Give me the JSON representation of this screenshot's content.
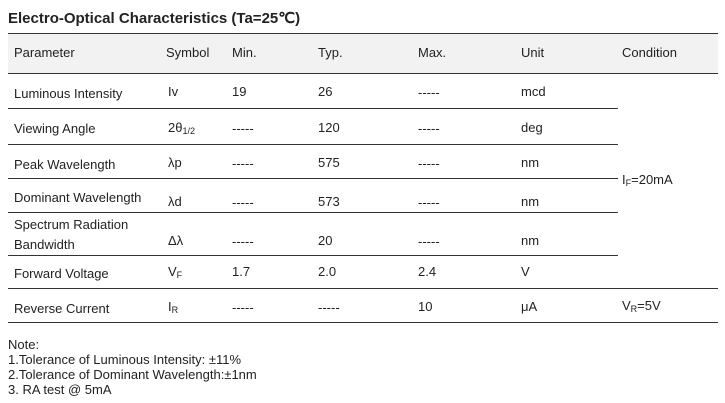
{
  "title": "Electro-Optical Characteristics (Ta=25℃)",
  "table": {
    "headers": [
      "Parameter",
      "Symbol",
      "Min.",
      "Typ.",
      "Max.",
      "Unit",
      "Condition"
    ],
    "rows": [
      {
        "parameter": "Luminous Intensity",
        "symbol": {
          "main": "Iv"
        },
        "min": "19",
        "typ": "26",
        "max": "-----",
        "unit": "mcd"
      },
      {
        "parameter": "Viewing Angle",
        "symbol": {
          "main": "2θ",
          "sub": "1/2"
        },
        "min": "-----",
        "typ": "120",
        "max": "-----",
        "unit": "deg"
      },
      {
        "parameter": "Peak Wavelength",
        "symbol": {
          "main": "λp"
        },
        "min": "-----",
        "typ": "575",
        "max": "-----",
        "unit": "nm"
      },
      {
        "parameter": "Dominant Wavelength",
        "symbol": {
          "main": "λd"
        },
        "min": "-----",
        "typ": "573",
        "max": "-----",
        "unit": "nm"
      },
      {
        "parameter": "Spectrum Radiation Bandwidth",
        "symbol": {
          "main": "Δλ"
        },
        "min": "-----",
        "typ": "20",
        "max": "-----",
        "unit": "nm"
      },
      {
        "parameter": "Forward Voltage",
        "symbol": {
          "main": "V",
          "sub": "F"
        },
        "min": "1.7",
        "typ": "2.0",
        "max": "2.4",
        "unit": "V"
      },
      {
        "parameter": "Reverse Current",
        "symbol": {
          "main": "I",
          "sub": "R"
        },
        "min": "-----",
        "typ": "-----",
        "max": "10",
        "unit": "μA"
      }
    ],
    "conditions": [
      {
        "main": "I",
        "sub": "F",
        "rest": "=20mA"
      },
      {
        "main": "V",
        "sub": "R",
        "rest": "=5V"
      }
    ]
  },
  "notes": {
    "heading": "Note:",
    "items": [
      "1.Tolerance of Luminous Intensity: ±11%",
      "2.Tolerance of Dominant Wavelength:±1nm",
      "3. RA test @ 5mA"
    ]
  }
}
